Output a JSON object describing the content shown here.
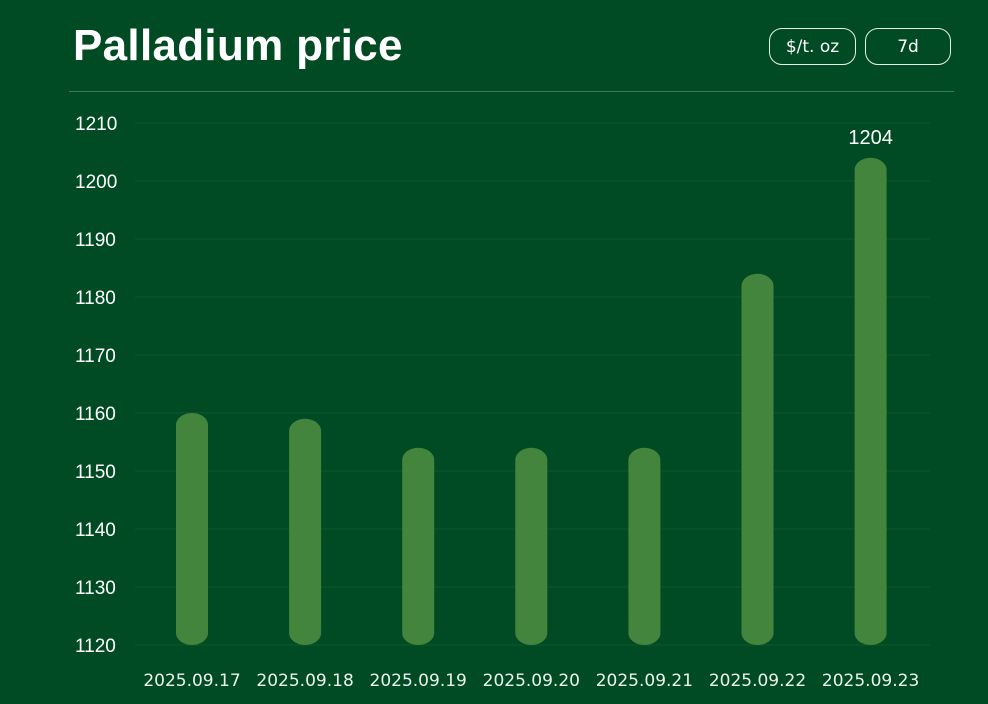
{
  "header": {
    "title": "Palladium price",
    "unit_button": "$/t. oz",
    "range_button": "7d"
  },
  "colors": {
    "background": "#004b23",
    "bar": "#43853d",
    "grid": "#0d5a2d",
    "divider": "#3f7a4f"
  },
  "chart_data": {
    "type": "bar",
    "title": "Palladium price",
    "categories": [
      "2025.09.17",
      "2025.09.18",
      "2025.09.19",
      "2025.09.20",
      "2025.09.21",
      "2025.09.22",
      "2025.09.23"
    ],
    "values": [
      1160,
      1159,
      1154,
      1154,
      1154,
      1184,
      1204
    ],
    "ylim": [
      1120,
      1210
    ],
    "yticks": [
      1120,
      1130,
      1140,
      1150,
      1160,
      1170,
      1180,
      1190,
      1200,
      1210
    ],
    "data_labels": [
      {
        "index": 6,
        "text": "1204"
      }
    ],
    "xlabel": "",
    "ylabel": "",
    "grid": true,
    "legend": "none"
  }
}
